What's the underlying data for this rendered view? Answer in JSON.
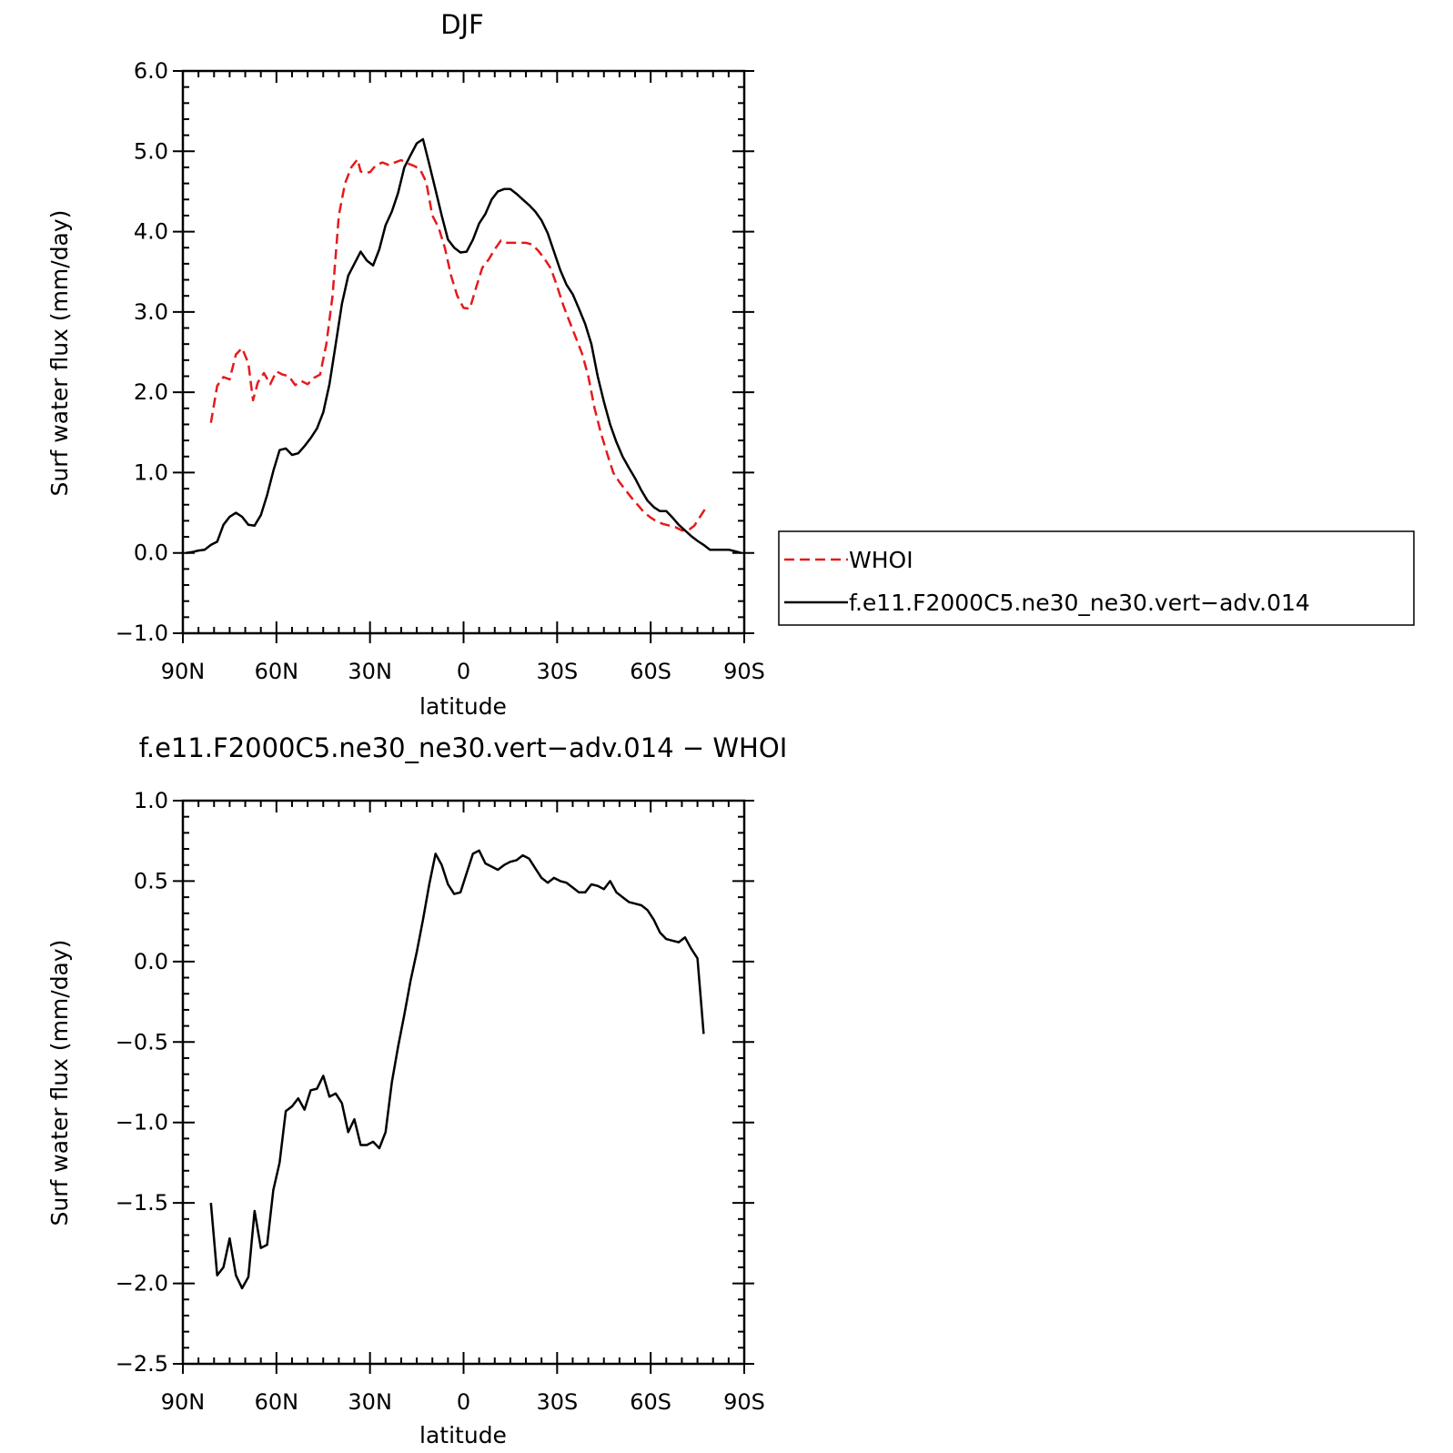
{
  "figure": {
    "top_title": "DJF",
    "bottom_title": "f.e11.F2000C5.ne30_ne30.vert−adv.014  −  WHOI"
  },
  "chart_data": [
    {
      "type": "line",
      "title": "DJF",
      "xlabel": "latitude",
      "ylabel": "Surf water flux (mm/day)",
      "xlim": [
        -90,
        90
      ],
      "ylim": [
        -1.0,
        6.0
      ],
      "x_direction": "north-to-south",
      "yticks": [
        "6.0",
        "5.0",
        "4.0",
        "3.0",
        "2.0",
        "1.0",
        "0.0",
        "−1.0"
      ],
      "ytick_values": [
        6,
        5,
        4,
        3,
        2,
        1,
        0,
        -1
      ],
      "xticks": [
        "90N",
        "60N",
        "30N",
        "0",
        "30S",
        "60S",
        "90S"
      ],
      "xtick_values": [
        90,
        60,
        30,
        0,
        -30,
        -60,
        -90
      ],
      "grid": false,
      "legend": {
        "placement": "right",
        "entries": [
          "WHOI",
          "f.e11.F2000C5.ne30_ne30.vert−adv.014"
        ]
      },
      "series": [
        {
          "name": "WHOI",
          "color": "#e41a1c",
          "dash": "dashed",
          "x": [
            81,
            79,
            77,
            75,
            73,
            71,
            69,
            67.5,
            66,
            64,
            62,
            60,
            58,
            56,
            54,
            52,
            50,
            48,
            46,
            44,
            42,
            40,
            38,
            36,
            34,
            33,
            32,
            30,
            28,
            26,
            24,
            22,
            20,
            18,
            16,
            14,
            12,
            10,
            8,
            6,
            4,
            2,
            0,
            -2,
            -4,
            -6,
            -8,
            -10,
            -12,
            -14,
            -16,
            -18,
            -20,
            -22,
            -24,
            -26,
            -28,
            -30,
            -32,
            -34,
            -36,
            -38,
            -40,
            -42,
            -44,
            -46,
            -48,
            -50,
            -52,
            -54,
            -56,
            -58,
            -60,
            -62,
            -64,
            -66,
            -68,
            -70,
            -72,
            -74,
            -76,
            -78
          ],
          "y": [
            1.62,
            2.08,
            2.19,
            2.16,
            2.47,
            2.55,
            2.36,
            1.9,
            2.12,
            2.24,
            2.1,
            2.26,
            2.22,
            2.2,
            2.09,
            2.14,
            2.1,
            2.18,
            2.22,
            2.6,
            3.2,
            4.2,
            4.6,
            4.8,
            4.9,
            4.75,
            4.73,
            4.74,
            4.83,
            4.86,
            4.83,
            4.86,
            4.89,
            4.85,
            4.82,
            4.78,
            4.62,
            4.2,
            4.05,
            3.8,
            3.45,
            3.2,
            3.05,
            3.04,
            3.3,
            3.55,
            3.65,
            3.78,
            3.89,
            3.86,
            3.86,
            3.86,
            3.86,
            3.84,
            3.76,
            3.66,
            3.54,
            3.32,
            3.08,
            2.88,
            2.68,
            2.48,
            2.2,
            1.8,
            1.5,
            1.24,
            1.0,
            0.88,
            0.78,
            0.68,
            0.59,
            0.5,
            0.44,
            0.39,
            0.36,
            0.34,
            0.32,
            0.28,
            0.28,
            0.34,
            0.46,
            0.58
          ]
        },
        {
          "name": "f.e11.F2000C5.ne30_ne30.vert−adv.014",
          "color": "#000000",
          "dash": "solid",
          "x": [
            89,
            87,
            85,
            83,
            81,
            79,
            77,
            75,
            73,
            71,
            69,
            67,
            65,
            63,
            61,
            59,
            57,
            55,
            53,
            51,
            49,
            47,
            45,
            43,
            41,
            39,
            37,
            35,
            33,
            31,
            29,
            27,
            25,
            23,
            21,
            19,
            17,
            15,
            13,
            11,
            9,
            7,
            5,
            3,
            1,
            -1,
            -3,
            -5,
            -7,
            -9,
            -11,
            -13,
            -15,
            -17,
            -19,
            -21,
            -23,
            -25,
            -27,
            -29,
            -31,
            -33,
            -35,
            -37,
            -39,
            -41,
            -43,
            -45,
            -47,
            -49,
            -51,
            -53,
            -55,
            -57,
            -59,
            -61,
            -63,
            -65,
            -67,
            -69,
            -71,
            -73,
            -75,
            -77,
            -79,
            -81,
            -83,
            -85,
            -87,
            -89
          ],
          "y": [
            0.0,
            0.01,
            0.03,
            0.04,
            0.1,
            0.14,
            0.35,
            0.45,
            0.5,
            0.45,
            0.35,
            0.34,
            0.47,
            0.72,
            1.02,
            1.28,
            1.3,
            1.22,
            1.24,
            1.33,
            1.43,
            1.55,
            1.75,
            2.1,
            2.6,
            3.1,
            3.45,
            3.6,
            3.75,
            3.64,
            3.58,
            3.78,
            4.08,
            4.25,
            4.48,
            4.8,
            4.95,
            5.1,
            5.15,
            4.84,
            4.52,
            4.2,
            3.9,
            3.8,
            3.74,
            3.75,
            3.9,
            4.1,
            4.22,
            4.4,
            4.5,
            4.53,
            4.53,
            4.47,
            4.4,
            4.33,
            4.25,
            4.14,
            3.98,
            3.75,
            3.52,
            3.34,
            3.22,
            3.04,
            2.85,
            2.6,
            2.2,
            1.88,
            1.6,
            1.38,
            1.2,
            1.06,
            0.93,
            0.78,
            0.65,
            0.57,
            0.52,
            0.52,
            0.44,
            0.35,
            0.28,
            0.21,
            0.15,
            0.1,
            0.04,
            0.04,
            0.04,
            0.04,
            0.02,
            0.0
          ]
        }
      ]
    },
    {
      "type": "line",
      "title": "f.e11.F2000C5.ne30_ne30.vert−adv.014  −  WHOI",
      "xlabel": "latitude",
      "ylabel": "Surf water flux (mm/day)",
      "xlim": [
        -90,
        90
      ],
      "ylim": [
        -2.5,
        1.0
      ],
      "x_direction": "north-to-south",
      "yticks": [
        "1.0",
        "0.5",
        "0.0",
        "−0.5",
        "−1.0",
        "−1.5",
        "−2.0",
        "−2.5"
      ],
      "ytick_values": [
        1.0,
        0.5,
        0.0,
        -0.5,
        -1.0,
        -1.5,
        -2.0,
        -2.5
      ],
      "xticks": [
        "90N",
        "60N",
        "30N",
        "0",
        "30S",
        "60S",
        "90S"
      ],
      "xtick_values": [
        90,
        60,
        30,
        0,
        -30,
        -60,
        -90
      ],
      "grid": false,
      "series": [
        {
          "color": "#000000",
          "dash": "solid",
          "x": [
            81,
            79,
            77,
            75,
            73,
            71,
            69,
            67,
            65,
            63,
            61,
            59,
            57,
            55,
            53,
            51,
            49,
            47,
            45,
            43,
            41,
            39,
            37,
            35,
            33,
            31,
            29,
            27,
            25,
            23,
            21,
            19,
            17,
            15,
            13,
            11,
            9,
            7,
            5,
            3,
            1,
            -1,
            -3,
            -5,
            -7,
            -9,
            -11,
            -13,
            -15,
            -17,
            -19,
            -21,
            -23,
            -25,
            -27,
            -29,
            -31,
            -33,
            -35,
            -37,
            -39,
            -41,
            -43,
            -45,
            -47,
            -49,
            -51,
            -53,
            -55,
            -57,
            -59,
            -61,
            -63,
            -65,
            -67,
            -69,
            -71,
            -73,
            -75,
            -77
          ],
          "y": [
            -1.5,
            -1.95,
            -1.9,
            -1.72,
            -1.95,
            -2.03,
            -1.96,
            -1.55,
            -1.78,
            -1.76,
            -1.42,
            -1.25,
            -0.93,
            -0.9,
            -0.85,
            -0.92,
            -0.8,
            -0.79,
            -0.71,
            -0.84,
            -0.82,
            -0.88,
            -1.06,
            -0.98,
            -1.14,
            -1.14,
            -1.12,
            -1.16,
            -1.06,
            -0.75,
            -0.53,
            -0.33,
            -0.12,
            0.06,
            0.26,
            0.48,
            0.67,
            0.6,
            0.48,
            0.42,
            0.43,
            0.55,
            0.67,
            0.69,
            0.61,
            0.59,
            0.57,
            0.6,
            0.62,
            0.63,
            0.66,
            0.64,
            0.58,
            0.52,
            0.49,
            0.52,
            0.5,
            0.49,
            0.46,
            0.43,
            0.43,
            0.48,
            0.47,
            0.45,
            0.5,
            0.43,
            0.4,
            0.37,
            0.36,
            0.35,
            0.32,
            0.26,
            0.18,
            0.14,
            0.13,
            0.12,
            0.15,
            0.08,
            0.02,
            -0.45
          ]
        }
      ]
    }
  ]
}
